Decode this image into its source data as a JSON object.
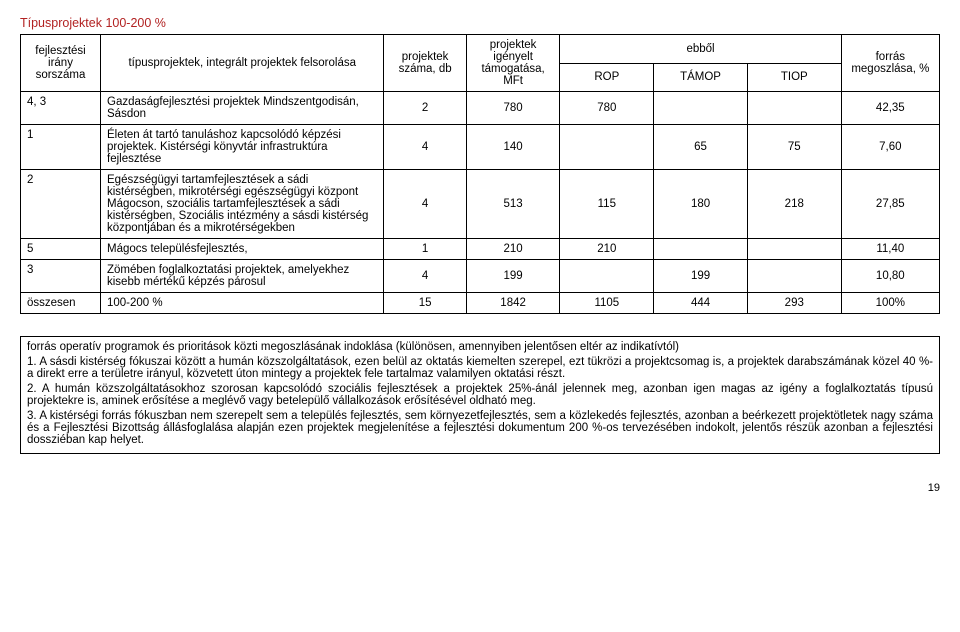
{
  "category_title": "Típusprojektek 100-200 %",
  "table": {
    "headers": {
      "col1": "fejlesztési irány sorszáma",
      "col2": "típusprojektek, integrált projektek felsorolása",
      "col3": "projektek száma, db",
      "col4": "projektek igényelt támogatása, MFt",
      "col_ebbol": "ebből",
      "col5": "ROP",
      "col6": "TÁMOP",
      "col7": "TIOP",
      "col8": "forrás megoszlása, %"
    },
    "rows": [
      {
        "irany": "4, 3",
        "fels": "Gazdaságfejlesztési projektek Mindszentgodisán, Sásdon",
        "szam": "2",
        "igeny": "780",
        "rop": "780",
        "tamop": "",
        "tiop": "",
        "forras": "42,35"
      },
      {
        "irany": "1",
        "fels": "Életen át tartó tanuláshoz kapcsolódó képzési projektek. Kistérségi könyvtár infrastruktúra fejlesztése",
        "szam": "4",
        "igeny": "140",
        "rop": "",
        "tamop": "65",
        "tiop": "75",
        "forras": "7,60"
      },
      {
        "irany": "2",
        "fels": "Egészségügyi tartamfejlesztések a sádi kistérségben, mikrotérségi egészségügyi központ Mágocson, szociális tartamfejlesztések a sádi kistérségben, Szociális intézmény a sásdi kistérség központjában és a mikrotérségekben",
        "szam": "4",
        "igeny": "513",
        "rop": "115",
        "tamop": "180",
        "tiop": "218",
        "forras": "27,85"
      },
      {
        "irany": "5",
        "fels": "Mágocs településfejlesztés,",
        "szam": "1",
        "igeny": "210",
        "rop": "210",
        "tamop": "",
        "tiop": "",
        "forras": "11,40"
      },
      {
        "irany": "3",
        "fels": "Zömében foglalkoztatási projektek, amelyekhez kisebb mértékű képzés párosul",
        "szam": "4",
        "igeny": "199",
        "rop": "",
        "tamop": "199",
        "tiop": "",
        "forras": "10,80"
      }
    ],
    "total": {
      "irany": "összesen",
      "fels": "100-200 %",
      "szam": "15",
      "igeny": "1842",
      "rop": "1105",
      "tamop": "444",
      "tiop": "293",
      "forras": "100%"
    }
  },
  "notes": {
    "intro": "forrás operatív programok és prioritások közti megoszlásának indoklása (különösen, amennyiben jelentősen eltér az indikatívtól)",
    "p1": "1. A sásdi kistérség fókuszai között a humán közszolgáltatások, ezen belül az oktatás kiemelten szerepel, ezt tükrözi a projektcsomag is, a projektek darabszámának közel 40 %-a direkt erre a területre irányul, közvetett úton mintegy a projektek fele tartalmaz valamilyen oktatási részt.",
    "p2": "2. A humán közszolgáltatásokhoz szorosan kapcsolódó szociális fejlesztések a projektek 25%-ánál jelennek meg, azonban igen magas az igény a foglalkoztatás típusú projektekre is, aminek erősítése a meglévő vagy betelepülő vállalkozások erősítésével oldható meg.",
    "p3": "3. A kistérségi forrás fókuszban nem szerepelt sem a település fejlesztés, sem környezetfejlesztés, sem a közlekedés fejlesztés, azonban a beérkezett projektötletek nagy száma és a Fejlesztési Bizottság állásfoglalása alapján ezen projektek megjelenítése a fejlesztési dokumentum 200 %-os tervezésében indokolt, jelentős részük azonban a fejlesztési dossziéban kap helyet."
  },
  "page_number": "19"
}
